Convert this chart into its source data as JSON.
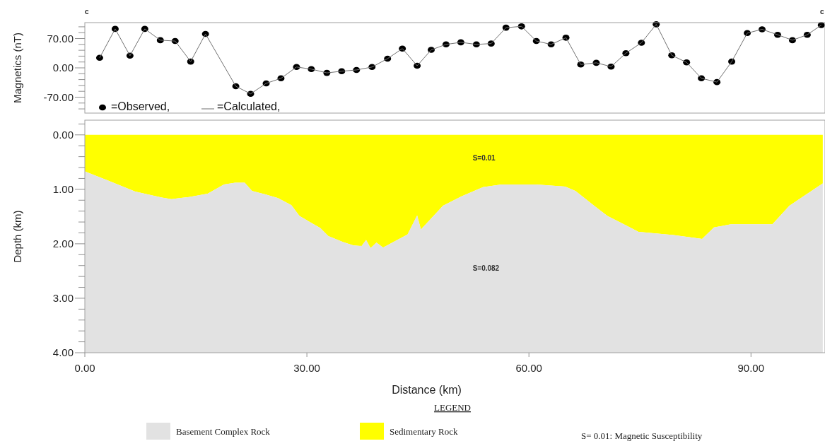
{
  "chart_data": [
    {
      "type": "line",
      "ylabel": "Magnetics (nT)",
      "xlim": [
        0,
        100
      ],
      "ylim": [
        -108,
        108
      ],
      "tick_labels": "y",
      "legend": "bottom left",
      "yticks": [
        {
          "value": -98,
          "label": null
        },
        {
          "value": -84,
          "label": null
        },
        {
          "value": -70,
          "label": "-70.00"
        },
        {
          "value": -56,
          "label": null
        },
        {
          "value": -42,
          "label": null
        },
        {
          "value": -28,
          "label": null
        },
        {
          "value": -14,
          "label": null
        },
        {
          "value": 0,
          "label": "0.00"
        },
        {
          "value": 14,
          "label": null
        },
        {
          "value": 28,
          "label": null
        },
        {
          "value": 42,
          "label": null
        },
        {
          "value": 56,
          "label": null
        },
        {
          "value": 70,
          "label": "70.00"
        },
        {
          "value": 84,
          "label": null
        },
        {
          "value": 98,
          "label": null
        }
      ],
      "annotations": [
        "c",
        "c"
      ],
      "series": [
        {
          "name": "=Observed,",
          "type": "scatter",
          "marker": "circle",
          "color": "#000000",
          "x": [
            2.0,
            4.1,
            6.1,
            8.1,
            10.2,
            12.2,
            14.3,
            16.3,
            20.4,
            22.4,
            24.5,
            26.5,
            28.6,
            30.6,
            32.7,
            34.7,
            36.7,
            38.8,
            40.9,
            42.9,
            44.9,
            46.8,
            48.8,
            50.8,
            52.9,
            54.9,
            56.9,
            59.0,
            61.0,
            63.0,
            65.0,
            67.0,
            69.1,
            71.1,
            73.1,
            75.2,
            77.2,
            79.3,
            81.3,
            83.3,
            85.4,
            87.4,
            89.5,
            91.5,
            93.6,
            95.6,
            97.6,
            99.5
          ],
          "values": [
            24,
            93,
            29,
            93,
            66,
            64,
            15,
            81,
            -44,
            -62,
            -37,
            -25,
            2,
            -3,
            -12,
            -8,
            -5,
            2,
            22,
            46,
            5,
            43,
            56,
            61,
            56,
            58,
            96,
            99,
            64,
            56,
            72,
            8,
            12,
            3,
            35,
            60,
            104,
            30,
            13,
            -25,
            -34,
            15,
            83,
            92,
            79,
            66,
            79,
            102
          ]
        },
        {
          "name": "=Calculated,",
          "type": "line",
          "line_style": "solid",
          "color": "#707070",
          "x": [
            2.0,
            4.1,
            6.1,
            8.1,
            10.2,
            12.2,
            14.3,
            16.3,
            20.4,
            22.4,
            24.5,
            26.5,
            28.6,
            30.6,
            32.7,
            34.7,
            36.7,
            38.8,
            40.9,
            42.9,
            44.9,
            46.8,
            48.8,
            50.8,
            52.9,
            54.9,
            56.9,
            59.0,
            61.0,
            63.0,
            65.0,
            67.0,
            69.1,
            71.1,
            73.1,
            75.2,
            77.2,
            79.3,
            81.3,
            83.3,
            85.4,
            87.4,
            89.5,
            91.5,
            93.6,
            95.6,
            97.6,
            99.5
          ],
          "values": [
            24,
            93,
            29,
            93,
            66,
            64,
            15,
            81,
            -44,
            -62,
            -37,
            -25,
            2,
            -3,
            -12,
            -8,
            -5,
            2,
            22,
            46,
            5,
            43,
            56,
            61,
            56,
            58,
            96,
            99,
            64,
            56,
            72,
            8,
            12,
            3,
            35,
            60,
            104,
            30,
            13,
            -25,
            -34,
            15,
            83,
            92,
            79,
            66,
            79,
            102
          ]
        }
      ]
    },
    {
      "type": "area",
      "stacked": true,
      "xlabel": "Distance (km)",
      "ylabel": "Depth (km)",
      "xlim": [
        0,
        100
      ],
      "ylim": [
        4,
        -0.27
      ],
      "legend": "bottom",
      "legend_title": "LEGEND",
      "xticks": [
        {
          "value": 0,
          "label": "0.00"
        },
        {
          "value": 30,
          "label": "30.00"
        },
        {
          "value": 60,
          "label": "60.00"
        },
        {
          "value": 90,
          "label": "90.00"
        }
      ],
      "yticks": [
        {
          "value": -0.2,
          "label": null
        },
        {
          "value": 0,
          "label": "0.00"
        },
        {
          "value": 0.2,
          "label": null
        },
        {
          "value": 0.4,
          "label": null
        },
        {
          "value": 0.6,
          "label": null
        },
        {
          "value": 0.8,
          "label": null
        },
        {
          "value": 1,
          "label": "1.00"
        },
        {
          "value": 1.2,
          "label": null
        },
        {
          "value": 1.4,
          "label": null
        },
        {
          "value": 1.6,
          "label": null
        },
        {
          "value": 1.8,
          "label": null
        },
        {
          "value": 2,
          "label": "2.00"
        },
        {
          "value": 2.2,
          "label": null
        },
        {
          "value": 2.4,
          "label": null
        },
        {
          "value": 2.6,
          "label": null
        },
        {
          "value": 2.8,
          "label": null
        },
        {
          "value": 3,
          "label": "3.00"
        },
        {
          "value": 3.2,
          "label": null
        },
        {
          "value": 3.4,
          "label": null
        },
        {
          "value": 3.6,
          "label": null
        },
        {
          "value": 3.8,
          "label": null
        },
        {
          "value": 4,
          "label": "4.00"
        }
      ],
      "annotations": [
        "S=0.01",
        "S=0.082",
        "S= 0.01: Magnetic Susceptibility"
      ],
      "x": [
        0,
        3.15,
        6.8,
        10.4,
        11.7,
        14.1,
        16.6,
        18.8,
        20.3,
        21.6,
        22.6,
        24.3,
        26.1,
        27.9,
        29.0,
        30.5,
        31.8,
        32.9,
        34.9,
        36.3,
        37.4,
        38.0,
        38.6,
        39.4,
        40.3,
        41.8,
        43.6,
        44.9,
        45.4,
        48.4,
        50.9,
        53.8,
        56.3,
        60.9,
        64.9,
        66.3,
        68.8,
        70.6,
        73.1,
        74.8,
        79.5,
        83.4,
        85.0,
        87.3,
        92.9,
        95.2,
        97.3,
        99.7
      ],
      "series": [
        {
          "name": "Sedimentary Rock",
          "color": "#ffff00",
          "values": [
            0.67,
            0.84,
            1.04,
            1.15,
            1.18,
            1.14,
            1.08,
            0.91,
            0.88,
            0.88,
            1.03,
            1.09,
            1.16,
            1.29,
            1.49,
            1.61,
            1.71,
            1.86,
            1.97,
            2.03,
            2.04,
            1.93,
            2.08,
            1.98,
            2.07,
            1.96,
            1.83,
            1.48,
            1.74,
            1.3,
            1.13,
            0.96,
            0.91,
            0.91,
            0.95,
            1.03,
            1.3,
            1.49,
            1.66,
            1.78,
            1.84,
            1.91,
            1.7,
            1.64,
            1.64,
            1.3,
            1.11,
            0.89
          ]
        },
        {
          "name": "Basement Complex Rock",
          "color": "#e2e2e2",
          "values": [
            3.33,
            3.16,
            2.96,
            2.85,
            2.82,
            2.86,
            2.92,
            3.09,
            3.12,
            3.12,
            2.97,
            2.91,
            2.84,
            2.71,
            2.51,
            2.39,
            2.29,
            2.14,
            2.03,
            1.97,
            1.96,
            2.07,
            1.92,
            2.02,
            1.93,
            2.04,
            2.17,
            2.52,
            2.26,
            2.7,
            2.87,
            3.04,
            3.09,
            3.09,
            3.05,
            2.97,
            2.7,
            2.51,
            2.34,
            2.22,
            2.16,
            2.09,
            2.3,
            2.36,
            2.36,
            2.7,
            2.89,
            3.11
          ]
        }
      ]
    }
  ]
}
